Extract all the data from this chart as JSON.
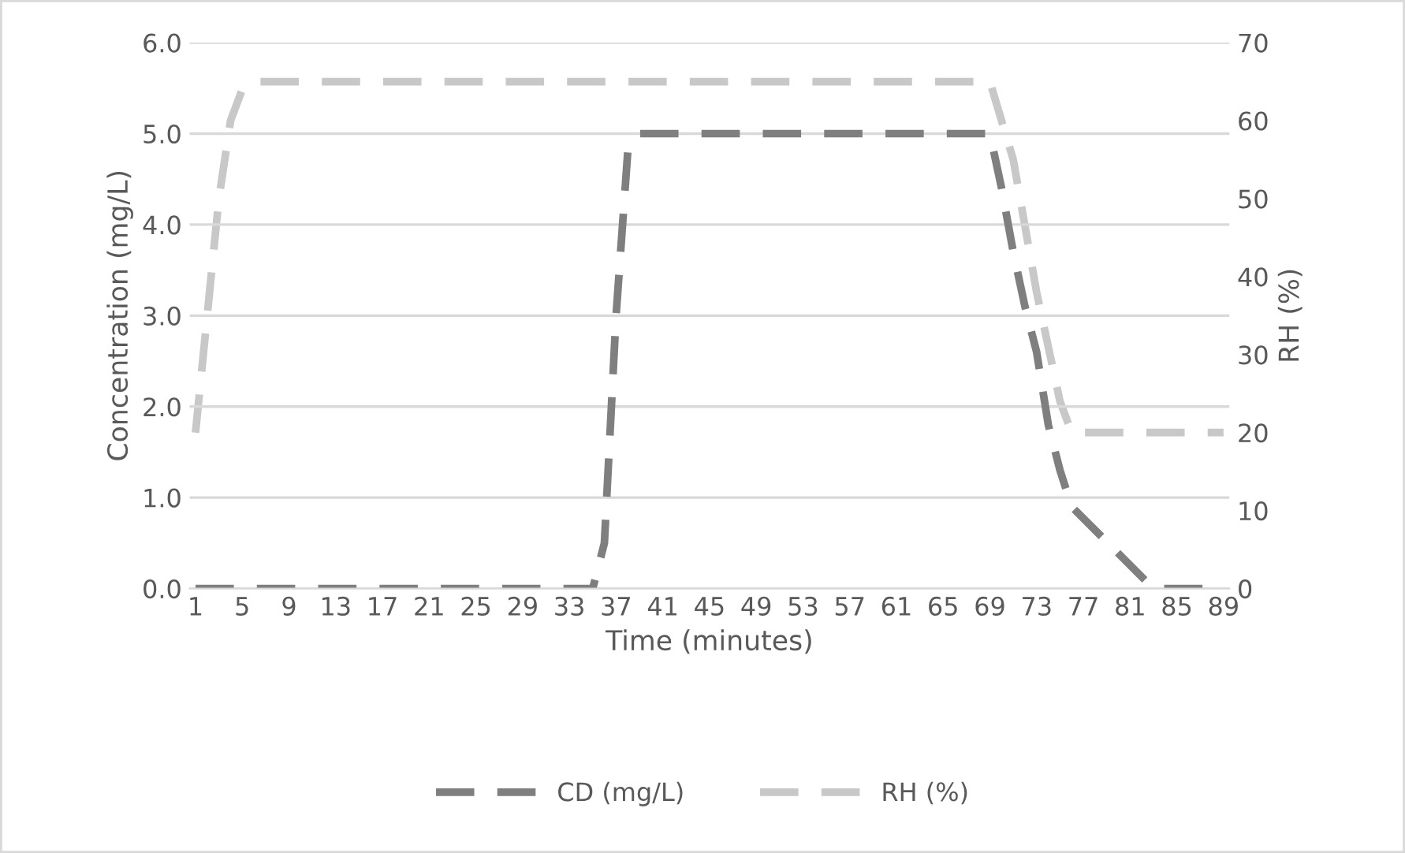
{
  "chart_data": {
    "type": "line",
    "xlabel": "Time (minutes)",
    "ylabel": "Concentration (mg/L)",
    "y2label": "RH (%)",
    "xlim": [
      0.5,
      89.5
    ],
    "xticks": [
      1,
      5,
      9,
      13,
      17,
      21,
      25,
      29,
      33,
      37,
      41,
      45,
      49,
      53,
      57,
      61,
      65,
      69,
      73,
      77,
      81,
      85,
      89
    ],
    "ylim": [
      0,
      6
    ],
    "yticks": [
      {
        "value": 0,
        "label": "0.0"
      },
      {
        "value": 1,
        "label": "1.0"
      },
      {
        "value": 2,
        "label": "2.0"
      },
      {
        "value": 3,
        "label": "3.0"
      },
      {
        "value": 4,
        "label": "4.0"
      },
      {
        "value": 5,
        "label": "5.0"
      },
      {
        "value": 6,
        "label": "6.0"
      }
    ],
    "y2lim": [
      0,
      70
    ],
    "y2ticks": [
      0,
      10,
      20,
      30,
      40,
      50,
      60,
      70
    ],
    "grid": "y",
    "legend": "bottom",
    "line_style": "dashed",
    "marker": "none",
    "series": [
      {
        "name": "CD (mg/L)",
        "color": "#7f7f7f",
        "x": [
          1,
          35,
          36,
          37,
          38,
          39,
          69,
          70,
          71,
          72,
          73,
          74,
          75,
          76,
          83,
          89
        ],
        "values": [
          0,
          0,
          0.5,
          3.0,
          4.8,
          5.0,
          5.0,
          4.4,
          3.7,
          3.1,
          2.6,
          1.8,
          1.3,
          0.9,
          0,
          0
        ]
      },
      {
        "name": "RH (%)",
        "color": "#c8c8c8",
        "axis": "y2",
        "x": [
          1,
          2,
          3,
          4,
          5,
          6,
          69,
          71,
          73,
          75,
          76,
          89
        ],
        "values": [
          20,
          35,
          50,
          60,
          64,
          65,
          65,
          55,
          38,
          24,
          20,
          20
        ]
      }
    ]
  }
}
